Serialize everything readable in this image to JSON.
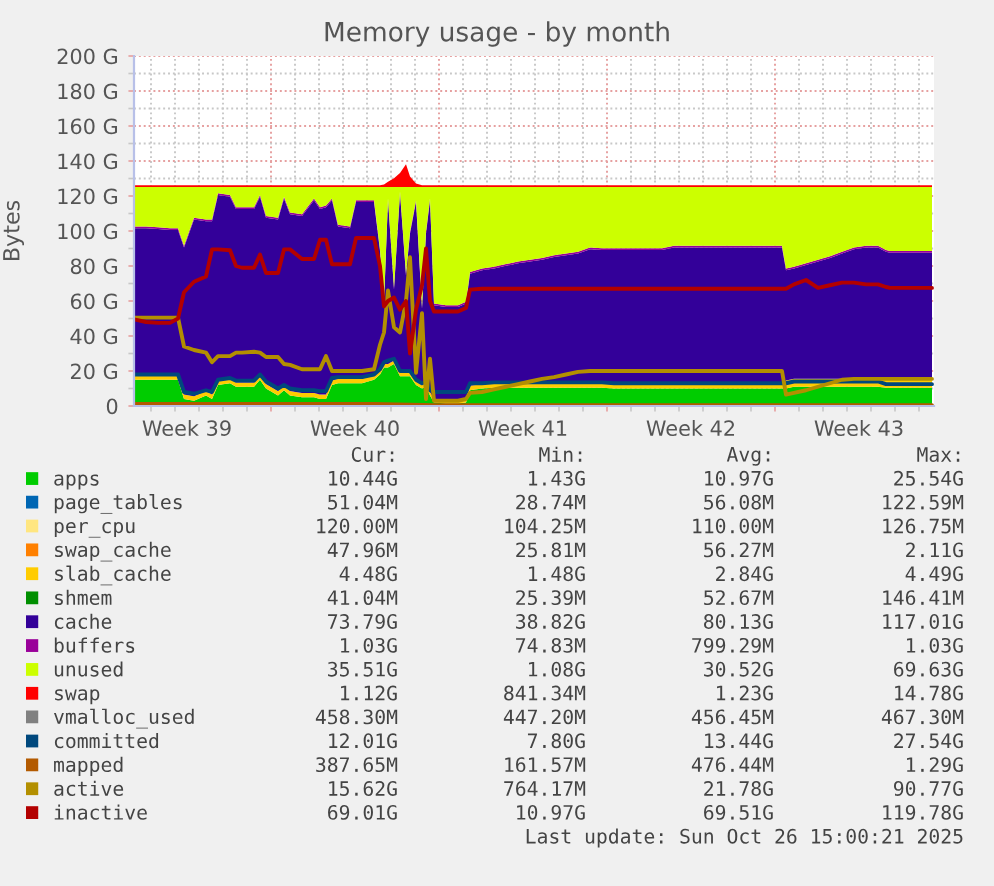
{
  "chart_data": {
    "type": "area",
    "title": "Memory usage - by month",
    "ylabel": "Bytes",
    "stacked": true,
    "grid": true,
    "legend": "bottom",
    "xlim": [
      "2025-09-23T07:00",
      "2025-10-26T15:00"
    ],
    "xticks": [
      {
        "value": "2025-09-24T00:00",
        "label": null
      },
      {
        "value": "2025-09-25T00:00",
        "label": null
      },
      {
        "value": "2025-09-25T12:00",
        "label": "Week 39"
      },
      {
        "value": "2025-09-26T00:00",
        "label": null
      },
      {
        "value": "2025-09-27T00:00",
        "label": null
      },
      {
        "value": "2025-09-28T00:00",
        "label": null
      },
      {
        "value": "2025-09-29T00:00",
        "label": null
      },
      {
        "value": "2025-09-30T00:00",
        "label": null
      },
      {
        "value": "2025-10-01T00:00",
        "label": null
      },
      {
        "value": "2025-10-02T00:00",
        "label": null
      },
      {
        "value": "2025-10-02T12:00",
        "label": "Week 40"
      },
      {
        "value": "2025-10-03T00:00",
        "label": null
      },
      {
        "value": "2025-10-04T00:00",
        "label": null
      },
      {
        "value": "2025-10-05T00:00",
        "label": null
      },
      {
        "value": "2025-10-06T00:00",
        "label": null
      },
      {
        "value": "2025-10-07T00:00",
        "label": null
      },
      {
        "value": "2025-10-08T00:00",
        "label": null
      },
      {
        "value": "2025-10-09T00:00",
        "label": null
      },
      {
        "value": "2025-10-09T12:00",
        "label": "Week 41"
      },
      {
        "value": "2025-10-10T00:00",
        "label": null
      },
      {
        "value": "2025-10-11T00:00",
        "label": null
      },
      {
        "value": "2025-10-12T00:00",
        "label": null
      },
      {
        "value": "2025-10-13T00:00",
        "label": null
      },
      {
        "value": "2025-10-14T00:00",
        "label": null
      },
      {
        "value": "2025-10-15T00:00",
        "label": null
      },
      {
        "value": "2025-10-16T00:00",
        "label": null
      },
      {
        "value": "2025-10-16T12:00",
        "label": "Week 42"
      },
      {
        "value": "2025-10-17T00:00",
        "label": null
      },
      {
        "value": "2025-10-18T00:00",
        "label": null
      },
      {
        "value": "2025-10-19T00:00",
        "label": null
      },
      {
        "value": "2025-10-20T00:00",
        "label": null
      },
      {
        "value": "2025-10-21T00:00",
        "label": null
      },
      {
        "value": "2025-10-22T00:00",
        "label": null
      },
      {
        "value": "2025-10-23T00:00",
        "label": null
      },
      {
        "value": "2025-10-23T12:00",
        "label": "Week 43"
      },
      {
        "value": "2025-10-24T00:00",
        "label": null
      },
      {
        "value": "2025-10-25T00:00",
        "label": null
      },
      {
        "value": "2025-10-26T00:00",
        "label": null
      }
    ],
    "ylim": [
      0,
      200
    ],
    "yticks": [
      0,
      {
        "value": 10,
        "label": null
      },
      {
        "value": 20,
        "label": "20 G"
      },
      {
        "value": 30,
        "label": null
      },
      {
        "value": 40,
        "label": "40 G"
      },
      {
        "value": 50,
        "label": null
      },
      {
        "value": 60,
        "label": "60 G"
      },
      {
        "value": 70,
        "label": null
      },
      {
        "value": 80,
        "label": "80 G"
      },
      {
        "value": 90,
        "label": null
      },
      {
        "value": 100,
        "label": "100 G"
      },
      {
        "value": 110,
        "label": null
      },
      {
        "value": 120,
        "label": "120 G"
      },
      {
        "value": 130,
        "label": null
      },
      {
        "value": 140,
        "label": "140 G"
      },
      {
        "value": 150,
        "label": null
      },
      {
        "value": 160,
        "label": "160 G"
      },
      {
        "value": 170,
        "label": null
      },
      {
        "value": 180,
        "label": "180 G"
      },
      {
        "value": 190,
        "label": null
      },
      {
        "value": 200,
        "label": "200 G"
      }
    ],
    "x": [
      "2025-09-23T07:00",
      "2025-09-23T19:00",
      "2025-09-24T07:00",
      "2025-09-24T19:00",
      "2025-09-25T03:00",
      "2025-09-25T09:00",
      "2025-09-25T19:00",
      "2025-09-26T07:00",
      "2025-09-26T13:00",
      "2025-09-26T19:00",
      "2025-09-27T07:00",
      "2025-09-27T13:00",
      "2025-09-27T19:00",
      "2025-09-28T07:00",
      "2025-09-28T13:00",
      "2025-09-28T19:00",
      "2025-09-29T07:00",
      "2025-09-29T13:00",
      "2025-09-29T19:00",
      "2025-09-30T07:00",
      "2025-09-30T19:00",
      "2025-10-01T01:00",
      "2025-10-01T07:00",
      "2025-10-01T13:00",
      "2025-10-01T19:00",
      "2025-10-02T07:00",
      "2025-10-02T13:00",
      "2025-10-02T19:00",
      "2025-10-03T07:00",
      "2025-10-03T13:00",
      "2025-10-03T17:00",
      "2025-10-03T21:00",
      "2025-10-04T03:00",
      "2025-10-04T09:00",
      "2025-10-04T15:00",
      "2025-10-04T19:00",
      "2025-10-05T01:00",
      "2025-10-05T07:00",
      "2025-10-05T11:00",
      "2025-10-05T15:00",
      "2025-10-05T19:00",
      "2025-10-06T07:00",
      "2025-10-06T19:00",
      "2025-10-07T03:00",
      "2025-10-07T07:00",
      "2025-10-07T19:00",
      "2025-10-08T07:00",
      "2025-10-08T19:00",
      "2025-10-09T07:00",
      "2025-10-09T19:00",
      "2025-10-10T07:00",
      "2025-10-10T19:00",
      "2025-10-11T07:00",
      "2025-10-11T19:00",
      "2025-10-12T07:00",
      "2025-10-12T19:00",
      "2025-10-13T07:00",
      "2025-10-13T19:00",
      "2025-10-14T07:00",
      "2025-10-14T19:00",
      "2025-10-15T07:00",
      "2025-10-15T19:00",
      "2025-10-16T07:00",
      "2025-10-16T19:00",
      "2025-10-17T07:00",
      "2025-10-17T19:00",
      "2025-10-18T07:00",
      "2025-10-18T19:00",
      "2025-10-19T07:00",
      "2025-10-19T19:00",
      "2025-10-20T07:00",
      "2025-10-20T11:00",
      "2025-10-20T19:00",
      "2025-10-21T07:00",
      "2025-10-21T19:00",
      "2025-10-22T07:00",
      "2025-10-22T19:00",
      "2025-10-23T07:00",
      "2025-10-23T19:00",
      "2025-10-24T07:00",
      "2025-10-24T15:00",
      "2025-10-24T19:00",
      "2025-10-25T07:00",
      "2025-10-25T19:00",
      "2025-10-26T07:00",
      "2025-10-26T13:00"
    ],
    "series": [
      {
        "name": "apps",
        "color": "#00cc00",
        "values": [
          15,
          15,
          15,
          15,
          15,
          4,
          3,
          6,
          4,
          12,
          13,
          11,
          11,
          11,
          15,
          10,
          6,
          9,
          6,
          5,
          5,
          4,
          4,
          12,
          13,
          13,
          13,
          13,
          15,
          18,
          22,
          22,
          24,
          17,
          17,
          17,
          12,
          10,
          11,
          6,
          2,
          1.5,
          1.5,
          2,
          9,
          10,
          10.5,
          10.5,
          10.5,
          10.5,
          10.5,
          10.5,
          10.5,
          10.5,
          10.5,
          10.5,
          10,
          10,
          10,
          10,
          10,
          10,
          10,
          10,
          10,
          10,
          10,
          10,
          10,
          10,
          10,
          10,
          11,
          11,
          11,
          11,
          11,
          11,
          11,
          11,
          10.5,
          10.5,
          10.5,
          10.5,
          10.5,
          10.5
        ]
      },
      {
        "name": "page_tables",
        "color": "#0066b3",
        "values": [
          null,
          null,
          null,
          null,
          null,
          null,
          null,
          null,
          null,
          null,
          null,
          null,
          null,
          null,
          null,
          null,
          null,
          null,
          null,
          null,
          null,
          null,
          null,
          null,
          null,
          null,
          null,
          null,
          null,
          null,
          null,
          null,
          null,
          null,
          null,
          null,
          null,
          null,
          null,
          null,
          null,
          null,
          null,
          null,
          null,
          null,
          null,
          null,
          null,
          null,
          null,
          null,
          null,
          null,
          null,
          null,
          null,
          null,
          null,
          null,
          null,
          null,
          null,
          null,
          null,
          null,
          null,
          null,
          null,
          null,
          null,
          null,
          null,
          null,
          null,
          null,
          null,
          null,
          null,
          null,
          null,
          null,
          null,
          null,
          null,
          null
        ]
      },
      {
        "name": "per_cpu",
        "color": "#ffe680",
        "values": [
          null,
          null,
          null,
          null,
          null,
          null,
          null,
          null,
          null,
          null,
          null,
          null,
          null,
          null,
          null,
          null,
          null,
          null,
          null,
          null,
          null,
          null,
          null,
          null,
          null,
          null,
          null,
          null,
          null,
          null,
          null,
          null,
          null,
          null,
          null,
          null,
          null,
          null,
          null,
          null,
          null,
          null,
          null,
          null,
          null,
          null,
          null,
          null,
          null,
          null,
          null,
          null,
          null,
          null,
          null,
          null,
          null,
          null,
          null,
          null,
          null,
          null,
          null,
          null,
          null,
          null,
          null,
          null,
          null,
          null,
          null,
          null,
          null,
          null,
          null,
          null,
          null,
          null,
          null,
          null,
          null,
          null,
          null,
          null,
          null,
          null
        ]
      },
      {
        "name": "swap_cache",
        "color": "#ff8000",
        "values": [
          null,
          null,
          null,
          null,
          null,
          null,
          null,
          null,
          null,
          null,
          null,
          null,
          null,
          null,
          null,
          null,
          null,
          null,
          null,
          null,
          null,
          null,
          null,
          null,
          null,
          null,
          null,
          null,
          null,
          null,
          null,
          null,
          null,
          null,
          null,
          null,
          null,
          null,
          null,
          null,
          null,
          null,
          null,
          null,
          null,
          null,
          null,
          null,
          null,
          null,
          null,
          null,
          null,
          null,
          null,
          null,
          null,
          null,
          null,
          null,
          null,
          null,
          null,
          null,
          null,
          null,
          null,
          null,
          null,
          null,
          null,
          null,
          null,
          null,
          null,
          null,
          null,
          null,
          null,
          null,
          null,
          null,
          null,
          null,
          null,
          null
        ]
      },
      {
        "name": "slab_cache",
        "color": "#ffcc00",
        "values": [
          2.5,
          2.5,
          2.5,
          2.5,
          2.5,
          2.5,
          2.5,
          2.5,
          2.5,
          2.5,
          2.5,
          2.5,
          2.5,
          2.5,
          2.5,
          2.5,
          2.5,
          2.5,
          2.5,
          2.5,
          2.5,
          2.5,
          2.5,
          2.5,
          2.5,
          2.5,
          2.5,
          2.5,
          2.5,
          2,
          2,
          2,
          2,
          2,
          2,
          2,
          2,
          2,
          2,
          2,
          2,
          2,
          2,
          2,
          2.5,
          2.5,
          2.5,
          2.5,
          2.5,
          2.5,
          2.5,
          2.5,
          2.5,
          2.5,
          2.5,
          2.5,
          2.5,
          2.5,
          2.5,
          2.5,
          2.5,
          2.5,
          2.5,
          2.5,
          2.5,
          2.5,
          2.5,
          2.5,
          2.5,
          2.5,
          2.5,
          4.5,
          4.5,
          4.5,
          4.5,
          4.5,
          4.5,
          4.5,
          4.5,
          4.5,
          4.5,
          4.5,
          4.5,
          4.5,
          4.5,
          4.5
        ]
      },
      {
        "name": "shmem",
        "color": "#008f00",
        "values": [
          null,
          null,
          null,
          null,
          null,
          null,
          null,
          null,
          null,
          null,
          null,
          null,
          null,
          null,
          null,
          null,
          null,
          null,
          null,
          null,
          null,
          null,
          null,
          null,
          null,
          null,
          null,
          null,
          null,
          null,
          null,
          null,
          null,
          null,
          null,
          null,
          null,
          null,
          null,
          null,
          null,
          null,
          null,
          null,
          null,
          null,
          null,
          null,
          null,
          null,
          null,
          null,
          null,
          null,
          null,
          null,
          null,
          null,
          null,
          null,
          null,
          null,
          null,
          null,
          null,
          null,
          null,
          null,
          null,
          null,
          null,
          null,
          null,
          null,
          null,
          null,
          null,
          null,
          null,
          null,
          null,
          null,
          null,
          null,
          null,
          null
        ]
      },
      {
        "name": "cache",
        "color": "#330099",
        "values": [
          84.1,
          84.1,
          83.6,
          83.1,
          83.1,
          84.1,
          101.1,
          97.1,
          99.1,
          106.1,
          104.1,
          99.1,
          99.1,
          99.1,
          102.1,
          95.1,
          98.1,
          107.1,
          101.1,
          101.1,
          110.1,
          106.1,
          107.1,
          103.1,
          87.1,
          86.1,
          101.1,
          101.1,
          99.1,
          68.6,
          34.6,
          93.6,
          40.6,
          102.6,
          55.6,
          79.6,
          102.6,
          43.6,
          85.6,
          109.6,
          53.6,
          53.1,
          53.1,
          54.6,
          64.1,
          65.1,
          65.6,
          67.1,
          68.6,
          69.6,
          70.6,
          72.1,
          73.1,
          74.1,
          76.6,
          76.1,
          76.6,
          76.6,
          76.6,
          76.6,
          76.6,
          78.1,
          78.1,
          78.1,
          78.1,
          78.1,
          78.1,
          78.1,
          78.1,
          78.1,
          78.1,
          63.1,
          63.1,
          65.1,
          67.1,
          69.1,
          71.6,
          74.1,
          75.1,
          75.1,
          73.1,
          72.6,
          72.6,
          72.6,
          72.6,
          72.6
        ]
      },
      {
        "name": "buffers",
        "color": "#990099",
        "values": [
          1,
          1,
          1,
          1,
          1,
          1,
          1,
          1,
          1,
          1,
          1,
          1,
          1,
          1,
          1,
          1,
          1,
          1,
          1,
          1,
          1,
          1,
          1,
          1,
          1,
          1,
          1,
          1,
          1,
          1,
          1,
          1,
          1,
          1,
          1,
          1,
          1,
          1,
          1,
          1,
          1,
          1,
          1,
          1,
          1,
          1,
          1,
          1,
          1,
          1,
          1,
          1,
          1,
          1,
          1,
          1,
          1,
          1,
          1,
          1,
          1,
          1,
          1,
          1,
          1,
          1,
          1,
          1,
          1,
          1,
          1,
          1,
          1,
          1,
          1,
          1,
          1,
          1,
          1,
          1,
          1,
          1,
          1,
          1,
          1,
          1
        ]
      },
      {
        "name": "unused",
        "color": "#ccff00",
        "values": [
          22.5,
          22.5,
          23,
          23.5,
          23.5,
          33.5,
          17.5,
          18.5,
          18.5,
          3.5,
          4.5,
          11.5,
          11.5,
          11.5,
          4.5,
          16.5,
          17.5,
          5.5,
          14.5,
          15.5,
          6.5,
          11.5,
          10.5,
          6.5,
          21.5,
          22.5,
          7.5,
          7.5,
          7.5,
          35.5,
          65.5,
          6.5,
          57.5,
          2.5,
          49.5,
          25.5,
          7.5,
          68.5,
          25.5,
          6.5,
          66.5,
          67.5,
          67.5,
          65.5,
          48.5,
          46.5,
          45.5,
          44,
          42.5,
          41.5,
          40.5,
          39,
          38,
          37,
          34.5,
          35,
          35,
          35,
          35,
          35,
          35,
          33.5,
          33.5,
          33.5,
          33.5,
          33.5,
          33.5,
          33.5,
          33.5,
          33.5,
          33.5,
          46.5,
          45.5,
          43.5,
          41.5,
          39.5,
          37,
          34.5,
          33.5,
          33.5,
          36,
          36.5,
          36.5,
          36.5,
          36.5,
          36.5
        ]
      },
      {
        "name": "swap",
        "color": "#ff0000",
        "values": [
          1.1,
          1.1,
          1.1,
          1.1,
          1.1,
          1.1,
          1.1,
          1.1,
          1.1,
          1.1,
          1.1,
          1.1,
          1.1,
          1.1,
          1.1,
          1.1,
          1.1,
          1.1,
          1.1,
          1.1,
          1.1,
          1.1,
          1.1,
          1.1,
          1.1,
          1.1,
          1.1,
          1.1,
          1.1,
          1.1,
          1.5,
          3,
          5,
          8,
          13,
          6,
          2,
          1.1,
          1.1,
          1.1,
          1.1,
          1.1,
          1.1,
          1.1,
          1.1,
          1.1,
          1.1,
          1.1,
          1.1,
          1.1,
          1.1,
          1.1,
          1.1,
          1.1,
          1.1,
          1.1,
          1.1,
          1.1,
          1.1,
          1.1,
          1.1,
          1.1,
          1.1,
          1.1,
          1.1,
          1.1,
          1.1,
          1.1,
          1.1,
          1.1,
          1.1,
          1.1,
          1.1,
          1.1,
          1.1,
          1.1,
          1.1,
          1.1,
          1.1,
          1.1,
          1.1,
          1.1,
          1.1,
          1.1,
          1.1,
          1.1
        ]
      },
      {
        "name": "vmalloc_used",
        "type": "line",
        "color": "#808080",
        "values": [
          null,
          null,
          null,
          null,
          null,
          null,
          null,
          null,
          null,
          null,
          null,
          null,
          null,
          null,
          null,
          null,
          null,
          null,
          null,
          null,
          null,
          null,
          null,
          null,
          null,
          null,
          null,
          null,
          null,
          null,
          null,
          null,
          null,
          null,
          null,
          null,
          null,
          null,
          null,
          null,
          null,
          null,
          null,
          null,
          null,
          null,
          null,
          null,
          null,
          null,
          null,
          null,
          null,
          null,
          null,
          null,
          null,
          null,
          null,
          null,
          null,
          null,
          null,
          null,
          null,
          null,
          null,
          null,
          null,
          null,
          null,
          null,
          null,
          null,
          null,
          null,
          null,
          null,
          null,
          null,
          null,
          null,
          null,
          null,
          null,
          null
        ]
      },
      {
        "name": "committed",
        "type": "line",
        "color": "#00487d",
        "values": [
          18,
          18,
          18,
          18,
          18,
          8,
          7,
          9,
          8,
          15,
          16,
          14.5,
          14.5,
          14.5,
          18,
          14,
          10,
          12,
          10,
          9,
          9,
          8.5,
          8.5,
          16,
          16.5,
          16.5,
          16.5,
          16.5,
          18,
          21,
          25,
          26,
          27,
          20,
          20,
          20,
          15,
          13,
          14,
          9,
          8,
          8,
          8,
          8,
          13,
          13,
          13.5,
          13.5,
          13.5,
          13.5,
          13.5,
          13.5,
          13.5,
          13.5,
          13.5,
          13.5,
          13,
          13,
          13,
          13,
          13,
          13,
          13,
          13,
          13,
          13,
          13,
          13,
          13,
          13,
          13,
          13,
          14,
          14,
          14,
          14,
          14,
          14,
          14,
          14,
          12.5,
          12.5,
          12.5,
          12.5,
          12.5,
          12.5
        ]
      },
      {
        "name": "mapped",
        "type": "line",
        "color": "#b35a00",
        "x": [
          "2025-09-23T07:00",
          "2025-10-03T07:00",
          "2025-10-05T19:00",
          "2025-10-26T13:00"
        ],
        "values": [
          1.2,
          1.2,
          0.4,
          0.4
        ]
      },
      {
        "name": "active",
        "type": "line",
        "color": "#b38f00",
        "values": [
          50.5,
          50.5,
          50.5,
          50.5,
          50.5,
          34,
          32,
          30.5,
          25,
          28.5,
          28.5,
          30.5,
          30.5,
          31,
          30.5,
          28,
          28,
          24,
          23.5,
          21,
          21,
          21,
          28.5,
          20,
          20,
          20,
          20,
          20,
          21,
          35,
          42,
          66,
          45,
          42,
          60,
          85,
          19,
          53,
          4,
          27,
          3,
          3,
          3,
          4,
          7.5,
          8,
          9.5,
          11,
          12.5,
          14,
          15.5,
          16.5,
          18,
          19.5,
          20,
          20,
          20,
          20,
          20,
          20,
          20,
          20,
          20,
          20,
          20,
          20,
          20,
          20,
          20,
          20,
          20,
          6.5,
          7.5,
          9,
          11,
          13,
          15,
          15.5,
          15.5,
          15.5,
          15.5,
          15.5,
          15.5,
          15.5,
          15.5,
          15.5
        ]
      },
      {
        "name": "inactive",
        "type": "line",
        "color": "#b30000",
        "values": [
          49.5,
          48,
          47.5,
          47.5,
          50,
          65,
          71,
          74,
          89.5,
          89.5,
          89,
          80,
          79,
          79,
          86.5,
          76,
          76,
          89.5,
          89.5,
          84,
          84,
          95,
          95,
          81,
          81,
          81,
          96,
          96,
          96,
          80,
          57,
          60,
          62,
          55,
          60,
          30,
          55,
          69,
          90,
          60,
          54,
          54,
          54,
          56,
          66.5,
          67,
          67,
          67,
          67,
          67,
          67,
          67,
          67,
          67,
          67,
          67,
          67,
          67,
          67,
          67,
          67,
          67,
          67,
          67,
          67,
          67,
          67,
          67,
          67,
          67,
          67,
          67,
          69.5,
          72,
          67.5,
          69,
          70.5,
          70.5,
          69.5,
          69.5,
          68,
          67.5,
          67.5,
          67.5,
          67.5,
          67.5
        ]
      }
    ],
    "annotations": [
      "Cur:",
      "Min:",
      "Avg:",
      "Max:",
      "10.44G",
      "1.43G",
      "10.97G",
      "25.54G",
      "51.04M",
      "28.74M",
      "56.08M",
      "122.59M",
      "120.00M",
      "104.25M",
      "110.00M",
      "126.75M",
      "47.96M",
      "25.81M",
      "56.27M",
      "2.11G",
      "4.48G",
      "1.48G",
      "2.84G",
      "4.49G",
      "41.04M",
      "25.39M",
      "52.67M",
      "146.41M",
      "73.79G",
      "38.82G",
      "80.13G",
      "117.01G",
      "1.03G",
      "74.83M",
      "799.29M",
      "1.03G",
      "35.51G",
      "1.08G",
      "30.52G",
      "69.63G",
      "1.12G",
      "841.34M",
      "1.23G",
      "14.78G",
      "458.30M",
      "447.20M",
      "456.45M",
      "467.30M",
      "12.01G",
      "7.80G",
      "13.44G",
      "27.54G",
      "387.65M",
      "161.57M",
      "476.44M",
      "1.29G",
      "15.62G",
      "764.17M",
      "21.78G",
      "90.77G",
      "69.01G",
      "10.97G",
      "69.51G",
      "119.78G",
      "Last update: Sun Oct 26 15:00:21 2025"
    ]
  }
}
